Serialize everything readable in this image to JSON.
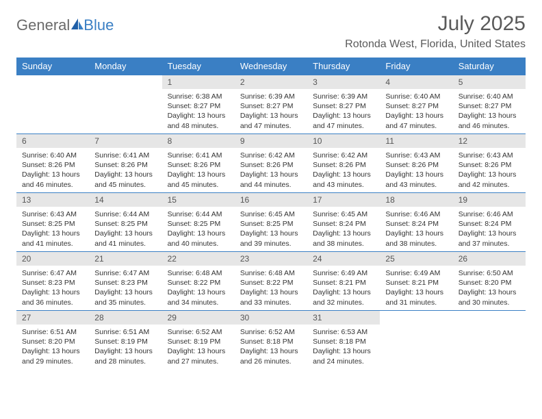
{
  "logo": {
    "general": "General",
    "blue": "Blue"
  },
  "title": "July 2025",
  "location": "Rotonda West, Florida, United States",
  "colors": {
    "header_bg": "#3a7fc4",
    "header_text": "#ffffff",
    "daynum_bg": "#e6e6e6",
    "border": "#3a7fc4",
    "text": "#333333"
  },
  "day_headers": [
    "Sunday",
    "Monday",
    "Tuesday",
    "Wednesday",
    "Thursday",
    "Friday",
    "Saturday"
  ],
  "weeks": [
    [
      null,
      null,
      {
        "n": "1",
        "sr": "6:38 AM",
        "ss": "8:27 PM",
        "dl": "13 hours and 48 minutes."
      },
      {
        "n": "2",
        "sr": "6:39 AM",
        "ss": "8:27 PM",
        "dl": "13 hours and 47 minutes."
      },
      {
        "n": "3",
        "sr": "6:39 AM",
        "ss": "8:27 PM",
        "dl": "13 hours and 47 minutes."
      },
      {
        "n": "4",
        "sr": "6:40 AM",
        "ss": "8:27 PM",
        "dl": "13 hours and 47 minutes."
      },
      {
        "n": "5",
        "sr": "6:40 AM",
        "ss": "8:27 PM",
        "dl": "13 hours and 46 minutes."
      }
    ],
    [
      {
        "n": "6",
        "sr": "6:40 AM",
        "ss": "8:26 PM",
        "dl": "13 hours and 46 minutes."
      },
      {
        "n": "7",
        "sr": "6:41 AM",
        "ss": "8:26 PM",
        "dl": "13 hours and 45 minutes."
      },
      {
        "n": "8",
        "sr": "6:41 AM",
        "ss": "8:26 PM",
        "dl": "13 hours and 45 minutes."
      },
      {
        "n": "9",
        "sr": "6:42 AM",
        "ss": "8:26 PM",
        "dl": "13 hours and 44 minutes."
      },
      {
        "n": "10",
        "sr": "6:42 AM",
        "ss": "8:26 PM",
        "dl": "13 hours and 43 minutes."
      },
      {
        "n": "11",
        "sr": "6:43 AM",
        "ss": "8:26 PM",
        "dl": "13 hours and 43 minutes."
      },
      {
        "n": "12",
        "sr": "6:43 AM",
        "ss": "8:26 PM",
        "dl": "13 hours and 42 minutes."
      }
    ],
    [
      {
        "n": "13",
        "sr": "6:43 AM",
        "ss": "8:25 PM",
        "dl": "13 hours and 41 minutes."
      },
      {
        "n": "14",
        "sr": "6:44 AM",
        "ss": "8:25 PM",
        "dl": "13 hours and 41 minutes."
      },
      {
        "n": "15",
        "sr": "6:44 AM",
        "ss": "8:25 PM",
        "dl": "13 hours and 40 minutes."
      },
      {
        "n": "16",
        "sr": "6:45 AM",
        "ss": "8:25 PM",
        "dl": "13 hours and 39 minutes."
      },
      {
        "n": "17",
        "sr": "6:45 AM",
        "ss": "8:24 PM",
        "dl": "13 hours and 38 minutes."
      },
      {
        "n": "18",
        "sr": "6:46 AM",
        "ss": "8:24 PM",
        "dl": "13 hours and 38 minutes."
      },
      {
        "n": "19",
        "sr": "6:46 AM",
        "ss": "8:24 PM",
        "dl": "13 hours and 37 minutes."
      }
    ],
    [
      {
        "n": "20",
        "sr": "6:47 AM",
        "ss": "8:23 PM",
        "dl": "13 hours and 36 minutes."
      },
      {
        "n": "21",
        "sr": "6:47 AM",
        "ss": "8:23 PM",
        "dl": "13 hours and 35 minutes."
      },
      {
        "n": "22",
        "sr": "6:48 AM",
        "ss": "8:22 PM",
        "dl": "13 hours and 34 minutes."
      },
      {
        "n": "23",
        "sr": "6:48 AM",
        "ss": "8:22 PM",
        "dl": "13 hours and 33 minutes."
      },
      {
        "n": "24",
        "sr": "6:49 AM",
        "ss": "8:21 PM",
        "dl": "13 hours and 32 minutes."
      },
      {
        "n": "25",
        "sr": "6:49 AM",
        "ss": "8:21 PM",
        "dl": "13 hours and 31 minutes."
      },
      {
        "n": "26",
        "sr": "6:50 AM",
        "ss": "8:20 PM",
        "dl": "13 hours and 30 minutes."
      }
    ],
    [
      {
        "n": "27",
        "sr": "6:51 AM",
        "ss": "8:20 PM",
        "dl": "13 hours and 29 minutes."
      },
      {
        "n": "28",
        "sr": "6:51 AM",
        "ss": "8:19 PM",
        "dl": "13 hours and 28 minutes."
      },
      {
        "n": "29",
        "sr": "6:52 AM",
        "ss": "8:19 PM",
        "dl": "13 hours and 27 minutes."
      },
      {
        "n": "30",
        "sr": "6:52 AM",
        "ss": "8:18 PM",
        "dl": "13 hours and 26 minutes."
      },
      {
        "n": "31",
        "sr": "6:53 AM",
        "ss": "8:18 PM",
        "dl": "13 hours and 24 minutes."
      },
      null,
      null
    ]
  ],
  "labels": {
    "sunrise": "Sunrise:",
    "sunset": "Sunset:",
    "daylight": "Daylight:"
  }
}
